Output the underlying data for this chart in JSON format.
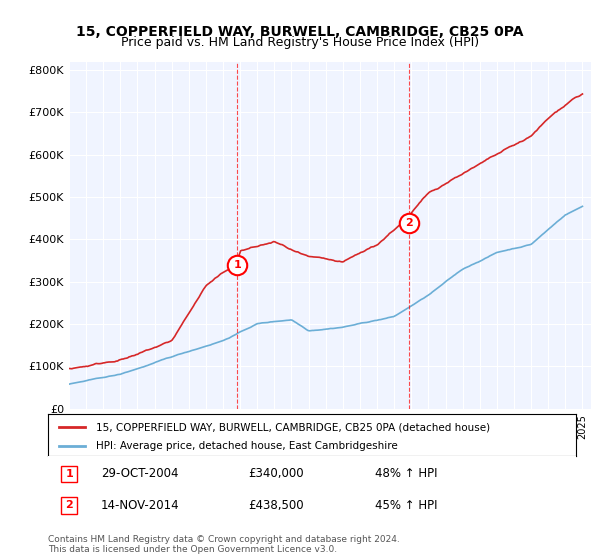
{
  "title1": "15, COPPERFIELD WAY, BURWELL, CAMBRIDGE, CB25 0PA",
  "title2": "Price paid vs. HM Land Registry's House Price Index (HPI)",
  "ylabel_ticks": [
    "£0",
    "£100K",
    "£200K",
    "£300K",
    "£400K",
    "£500K",
    "£600K",
    "£700K",
    "£800K"
  ],
  "ytick_values": [
    0,
    100000,
    200000,
    300000,
    400000,
    500000,
    600000,
    700000,
    800000
  ],
  "ylim": [
    0,
    820000
  ],
  "sale1_year": 2004.83,
  "sale1_price": 340000,
  "sale2_year": 2014.87,
  "sale2_price": 438500,
  "legend_line1": "15, COPPERFIELD WAY, BURWELL, CAMBRIDGE, CB25 0PA (detached house)",
  "legend_line2": "HPI: Average price, detached house, East Cambridgeshire",
  "annot1_label": "1",
  "annot1_date": "29-OCT-2004",
  "annot1_price": "£340,000",
  "annot1_hpi": "48% ↑ HPI",
  "annot2_label": "2",
  "annot2_date": "14-NOV-2014",
  "annot2_price": "£438,500",
  "annot2_hpi": "45% ↑ HPI",
  "footer": "Contains HM Land Registry data © Crown copyright and database right 2024.\nThis data is licensed under the Open Government Licence v3.0.",
  "hpi_color": "#6baed6",
  "price_color": "#d62728",
  "background_color": "#f0f4ff"
}
